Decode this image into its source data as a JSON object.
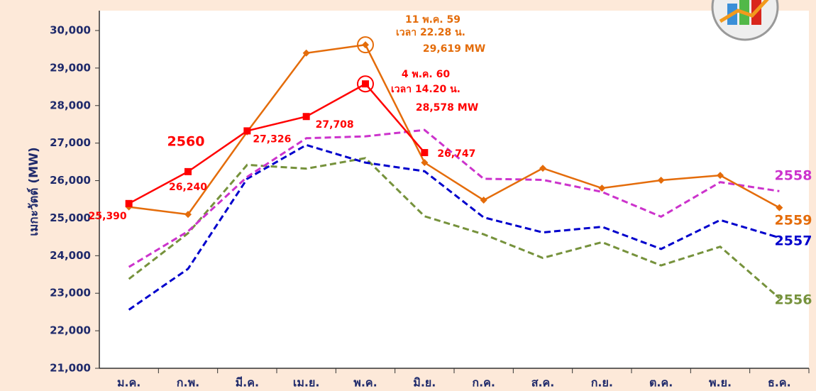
{
  "chart_data": {
    "type": "line",
    "y_label": "เมกะวัตต์ (MW)",
    "categories": [
      "ม.ค.",
      "ก.พ.",
      "มี.ค.",
      "เม.ย.",
      "พ.ค.",
      "มิ.ย.",
      "ก.ค.",
      "ส.ค.",
      "ก.ย.",
      "ต.ค.",
      "พ.ย.",
      "ธ.ค."
    ],
    "ylim": [
      21000,
      30000
    ],
    "yticks": [
      {
        "value": 21000,
        "label": "21,000"
      },
      {
        "value": 22000,
        "label": "22,000"
      },
      {
        "value": 23000,
        "label": "23,000"
      },
      {
        "value": 24000,
        "label": "24,000"
      },
      {
        "value": 25000,
        "label": "25,000"
      },
      {
        "value": 26000,
        "label": "26,000"
      },
      {
        "value": 27000,
        "label": "27,000"
      },
      {
        "value": 28000,
        "label": "28,000"
      },
      {
        "value": 29000,
        "label": "29,000"
      },
      {
        "value": 30000,
        "label": "30,000"
      }
    ],
    "series": [
      {
        "name": "2560",
        "color": "#ff0000",
        "dashed": false,
        "marker": "square",
        "values": [
          25390,
          26240,
          27326,
          27708,
          28578,
          26747,
          null,
          null,
          null,
          null,
          null,
          null
        ],
        "value_labels": [
          "25,390",
          "26,240",
          "27,326",
          "27,708",
          null,
          "26,747",
          null,
          null,
          null,
          null,
          null,
          null
        ]
      },
      {
        "name": "2559",
        "color": "#e46c0a",
        "dashed": false,
        "marker": "diamond",
        "values": [
          25300,
          25100,
          27300,
          29400,
          29619,
          26480,
          25480,
          26330,
          25800,
          26010,
          26140,
          25280
        ]
      },
      {
        "name": "2558",
        "color": "#cc33cc",
        "dashed": true,
        "marker": "none",
        "values": [
          23700,
          24650,
          26100,
          27130,
          27180,
          27350,
          26050,
          26020,
          25700,
          25040,
          25960,
          25720
        ]
      },
      {
        "name": "2557",
        "color": "#0000cc",
        "dashed": true,
        "marker": "none",
        "values": [
          22560,
          23650,
          26050,
          26950,
          26480,
          26250,
          25020,
          24620,
          24770,
          24180,
          24950,
          24480
        ]
      },
      {
        "name": "2556",
        "color": "#76923c",
        "dashed": true,
        "marker": "none",
        "values": [
          23380,
          24600,
          26420,
          26320,
          26600,
          25050,
          24570,
          23940,
          24360,
          23740,
          24240,
          22870
        ]
      }
    ],
    "annotations": [
      {
        "series": 1,
        "index": 4,
        "lines": [
          "11 พ.ค. 59",
          "เวลา 22.28 น.",
          "29,619  MW"
        ]
      },
      {
        "series": 0,
        "index": 4,
        "lines": [
          "4 พ.ค. 60",
          "เวลา 14.20 น.",
          "28,578 MW"
        ]
      }
    ]
  }
}
